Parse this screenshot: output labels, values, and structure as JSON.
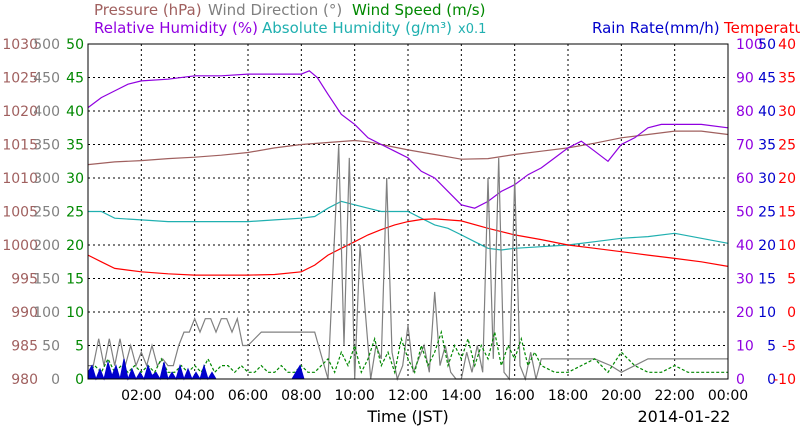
{
  "chart_data": {
    "type": "line",
    "date_label": "2014-01-22",
    "xlabel": "Time (JST)",
    "x_ticks": [
      "02:00",
      "04:00",
      "06:00",
      "08:00",
      "10:00",
      "12:00",
      "14:00",
      "16:00",
      "18:00",
      "20:00",
      "22:00",
      "00:00"
    ],
    "xlim_hours": [
      0,
      24
    ],
    "grid": true,
    "legend": [
      {
        "label": "Pressure (hPa)",
        "color": "#a0605f",
        "row": 1
      },
      {
        "label": "Wind Direction (°)",
        "color": "#808080",
        "row": 1
      },
      {
        "label": "Wind Speed (m/s)",
        "color": "#008800",
        "row": 1
      },
      {
        "label": "Relative Humidity (%)",
        "color": "#9000e0",
        "row": 2
      },
      {
        "label": "Absolute Humidity (g/m³)",
        "color": "#20b0b0",
        "row": 2
      },
      {
        "label": "x0.1",
        "color": "#20b0b0",
        "row": 2
      },
      {
        "label": "Rain Rate(mm/h)",
        "color": "#0000cc",
        "row": 2
      },
      {
        "label": "Temperature (°C)",
        "color": "#ff0000",
        "row": 2
      }
    ],
    "axes": [
      {
        "name": "Pressure",
        "unit": "hPa",
        "side": "left",
        "color": "#a0605f",
        "range": [
          980,
          1030
        ],
        "ticks": [
          "980",
          "985",
          "990",
          "995",
          "1000",
          "1005",
          "1010",
          "1015",
          "1020",
          "1025",
          "1030"
        ]
      },
      {
        "name": "Wind Direction",
        "unit": "°",
        "side": "left",
        "color": "#808080",
        "range": [
          0,
          500
        ],
        "ticks": [
          "0",
          "50",
          "100",
          "150",
          "200",
          "250",
          "300",
          "350",
          "400",
          "450",
          "500"
        ]
      },
      {
        "name": "Wind Speed",
        "unit": "m/s",
        "side": "left",
        "color": "#008800",
        "range": [
          0,
          50
        ],
        "ticks": [
          "0",
          "5",
          "10",
          "15",
          "20",
          "25",
          "30",
          "35",
          "40",
          "45",
          "50"
        ]
      },
      {
        "name": "Relative Humidity",
        "unit": "%",
        "side": "right",
        "color": "#9000e0",
        "range": [
          0,
          100
        ],
        "ticks": [
          "0",
          "10",
          "20",
          "30",
          "40",
          "50",
          "60",
          "70",
          "80",
          "90",
          "100"
        ]
      },
      {
        "name": "Rain Rate",
        "unit": "mm/h",
        "side": "right",
        "color": "#0000cc",
        "range": [
          0,
          50
        ],
        "ticks": [
          "0",
          "5",
          "10",
          "15",
          "20",
          "25",
          "30",
          "35",
          "40",
          "45",
          "50"
        ]
      },
      {
        "name": "Temperature",
        "unit": "°C",
        "side": "right",
        "color": "#ff0000",
        "range": [
          -10,
          40
        ],
        "ticks": [
          "-10",
          "-5",
          "0",
          "5",
          "10",
          "15",
          "20",
          "25",
          "30",
          "35",
          "40"
        ]
      }
    ],
    "series": [
      {
        "name": "Pressure (hPa)",
        "axis": "Pressure",
        "color": "#a0605f",
        "x": [
          0.0,
          1.0,
          2.0,
          3.0,
          4.0,
          5.0,
          6.0,
          7.0,
          8.0,
          9.0,
          10.0,
          10.5,
          11.0,
          12.0,
          13.0,
          14.0,
          15.0,
          16.0,
          17.0,
          18.0,
          19.0,
          20.0,
          21.0,
          22.0,
          23.0,
          24.0
        ],
        "y": [
          1012.0,
          1012.4,
          1012.6,
          1012.9,
          1013.1,
          1013.4,
          1013.8,
          1014.5,
          1015.0,
          1015.3,
          1015.6,
          1015.4,
          1015.0,
          1014.2,
          1013.5,
          1012.8,
          1012.9,
          1013.5,
          1014.0,
          1014.5,
          1015.2,
          1016.0,
          1016.5,
          1017.0,
          1017.0,
          1016.5
        ]
      },
      {
        "name": "Relative Humidity (%)",
        "axis": "Relative Humidity",
        "color": "#9000e0",
        "x": [
          0.0,
          0.5,
          1.0,
          1.5,
          2.0,
          3.0,
          4.0,
          5.0,
          6.0,
          7.0,
          8.0,
          8.3,
          8.6,
          9.0,
          9.5,
          10.0,
          10.5,
          11.0,
          11.5,
          12.0,
          12.5,
          13.0,
          13.5,
          14.0,
          14.5,
          15.0,
          15.5,
          16.0,
          16.5,
          17.0,
          17.5,
          18.0,
          18.5,
          19.0,
          19.5,
          20.0,
          20.5,
          21.0,
          21.5,
          22.0,
          23.0,
          24.0
        ],
        "y": [
          81,
          84,
          86,
          88,
          89,
          89.5,
          90.5,
          90.5,
          91,
          91,
          91,
          92,
          90,
          85,
          79,
          76,
          72,
          70,
          68,
          66,
          62,
          60,
          56,
          52,
          51,
          53,
          56,
          58,
          61,
          63,
          66,
          69,
          71,
          68,
          65,
          70,
          72,
          75,
          76,
          76,
          76,
          75
        ]
      },
      {
        "name": "Absolute Humidity (g/m³) x0.1",
        "axis": "Relative Humidity",
        "color": "#20b0b0",
        "x": [
          0.0,
          0.5,
          1.0,
          2.0,
          3.0,
          4.0,
          5.0,
          6.0,
          7.0,
          8.0,
          8.5,
          9.0,
          9.5,
          10.0,
          10.5,
          11.0,
          12.0,
          12.5,
          13.0,
          13.5,
          14.0,
          14.5,
          15.0,
          15.5,
          16.0,
          17.0,
          18.0,
          19.0,
          20.0,
          21.0,
          22.0,
          23.0,
          24.0
        ],
        "y": [
          50,
          50,
          48,
          47.5,
          47,
          47,
          47,
          47,
          47.5,
          48,
          48.5,
          51,
          53,
          52,
          51,
          50,
          50,
          48,
          46,
          45,
          43,
          41,
          39,
          38.5,
          39,
          39.5,
          40,
          41,
          42,
          42.5,
          43.5,
          42,
          40.5
        ]
      },
      {
        "name": "Temperature (°C)",
        "axis": "Temperature",
        "color": "#ff0000",
        "x": [
          0.0,
          0.5,
          1.0,
          2.0,
          3.0,
          4.0,
          5.0,
          6.0,
          7.0,
          8.0,
          8.5,
          9.0,
          9.5,
          10.0,
          10.5,
          11.0,
          11.5,
          12.0,
          12.5,
          13.0,
          14.0,
          15.0,
          16.0,
          17.0,
          18.0,
          19.0,
          20.0,
          21.0,
          22.0,
          23.0,
          24.0
        ],
        "y": [
          8.5,
          7.5,
          6.5,
          6.0,
          5.7,
          5.5,
          5.5,
          5.5,
          5.6,
          6.0,
          7.0,
          8.5,
          9.5,
          10.5,
          11.5,
          12.3,
          13.0,
          13.5,
          13.8,
          13.9,
          13.6,
          12.5,
          11.5,
          10.8,
          10.0,
          9.5,
          9.0,
          8.5,
          8.0,
          7.5,
          6.8
        ]
      },
      {
        "name": "Wind Direction (°)",
        "axis": "Wind Direction",
        "color": "#808080",
        "x": [
          0.0,
          0.2,
          0.4,
          0.6,
          0.8,
          1.0,
          1.2,
          1.4,
          1.6,
          1.8,
          2.0,
          2.2,
          2.4,
          2.6,
          2.8,
          3.0,
          3.2,
          3.4,
          3.6,
          3.8,
          4.0,
          4.2,
          4.4,
          4.6,
          4.8,
          5.0,
          5.2,
          5.4,
          5.6,
          5.8,
          6.0,
          6.5,
          7.0,
          7.5,
          8.0,
          8.5,
          9.0,
          9.4,
          9.6,
          9.8,
          10.0,
          10.2,
          10.4,
          10.6,
          10.8,
          11.0,
          11.2,
          11.4,
          11.6,
          11.8,
          12.0,
          12.2,
          12.4,
          12.6,
          12.8,
          13.0,
          13.2,
          13.4,
          13.6,
          13.8,
          14.0,
          14.2,
          14.4,
          14.6,
          14.8,
          15.0,
          15.2,
          15.4,
          15.6,
          15.8,
          16.0,
          16.2,
          16.4,
          16.6,
          16.8,
          17.0,
          18.0,
          19.0,
          19.6,
          20.0,
          21.0,
          22.0,
          23.0,
          24.0
        ],
        "y": [
          20,
          20,
          60,
          20,
          60,
          20,
          60,
          20,
          50,
          20,
          40,
          20,
          50,
          20,
          30,
          20,
          20,
          50,
          70,
          70,
          90,
          70,
          90,
          90,
          70,
          90,
          90,
          70,
          90,
          50,
          50,
          70,
          70,
          70,
          70,
          70,
          0,
          350,
          50,
          330,
          0,
          200,
          100,
          0,
          50,
          30,
          300,
          40,
          0,
          20,
          80,
          10,
          30,
          50,
          10,
          130,
          20,
          50,
          10,
          0,
          0,
          40,
          10,
          50,
          10,
          300,
          30,
          330,
          10,
          0,
          300,
          20,
          0,
          40,
          0,
          30,
          30,
          30,
          20,
          10,
          30,
          30,
          30,
          30
        ]
      },
      {
        "name": "Wind Speed (m/s)",
        "axis": "Wind Speed",
        "color": "#008800",
        "x": [
          0.0,
          0.25,
          0.5,
          0.75,
          1.0,
          1.25,
          1.5,
          1.75,
          2.0,
          2.25,
          2.5,
          2.75,
          3.0,
          3.25,
          3.5,
          3.75,
          4.0,
          4.25,
          4.5,
          4.75,
          5.0,
          5.25,
          5.5,
          5.75,
          6.0,
          6.25,
          6.5,
          6.75,
          7.0,
          7.25,
          7.5,
          7.75,
          8.0,
          8.25,
          8.5,
          8.75,
          9.0,
          9.25,
          9.5,
          9.75,
          10.0,
          10.25,
          10.5,
          10.75,
          11.0,
          11.25,
          11.5,
          11.75,
          12.0,
          12.25,
          12.5,
          12.75,
          13.0,
          13.25,
          13.5,
          13.75,
          14.0,
          14.25,
          14.5,
          14.75,
          15.0,
          15.25,
          15.5,
          15.75,
          16.0,
          16.25,
          16.5,
          16.75,
          17.0,
          17.5,
          18.0,
          18.5,
          19.0,
          19.5,
          20.0,
          20.5,
          21.0,
          21.5,
          22.0,
          22.5,
          23.0,
          23.5,
          24.0
        ],
        "y": [
          1,
          2,
          1,
          3,
          1,
          2,
          1,
          2,
          1,
          2,
          1,
          3,
          1,
          1,
          2,
          1,
          2,
          1,
          3,
          1,
          2,
          2,
          1,
          2,
          1,
          1,
          2,
          1,
          1,
          2,
          1,
          1,
          2,
          1,
          1,
          2,
          3,
          1,
          4,
          2,
          5,
          1,
          3,
          6,
          2,
          4,
          1,
          6,
          3,
          1,
          5,
          2,
          4,
          7,
          2,
          5,
          3,
          6,
          2,
          5,
          3,
          7,
          2,
          5,
          3,
          6,
          2,
          4,
          2,
          1,
          1,
          2,
          3,
          1,
          4,
          2,
          1,
          1,
          2,
          1,
          1,
          1,
          1
        ]
      },
      {
        "name": "Rain Rate(mm/h)",
        "axis": "Rain Rate",
        "color": "#0000cc",
        "x": [
          0.0,
          0.15,
          0.3,
          0.45,
          0.6,
          0.75,
          0.9,
          1.05,
          1.2,
          1.35,
          1.5,
          1.65,
          1.8,
          1.95,
          2.1,
          2.25,
          2.4,
          2.55,
          2.7,
          2.85,
          3.0,
          3.15,
          3.3,
          3.45,
          3.6,
          3.75,
          3.9,
          4.05,
          4.2,
          4.35,
          4.5,
          4.65,
          4.8,
          4.95,
          5.1,
          5.25,
          5.4,
          5.55,
          5.7,
          5.85,
          6.0,
          6.15,
          6.3,
          6.45,
          6.6,
          6.75,
          6.9,
          7.05,
          7.2,
          7.35,
          7.5,
          7.65,
          7.8,
          7.95,
          8.1
        ],
        "y": [
          1,
          2,
          0,
          1.5,
          0,
          2.5,
          0.5,
          2,
          0,
          3,
          0,
          1.5,
          0,
          1,
          0,
          2,
          0.5,
          1,
          0,
          2.5,
          0,
          1,
          0,
          2,
          0,
          1.5,
          0,
          1,
          0,
          2,
          0,
          1,
          0,
          0,
          0,
          0,
          0,
          0,
          0,
          0,
          0,
          0,
          0,
          0,
          0,
          0,
          0,
          0,
          0,
          0,
          0,
          0,
          1,
          2,
          0
        ]
      }
    ]
  }
}
